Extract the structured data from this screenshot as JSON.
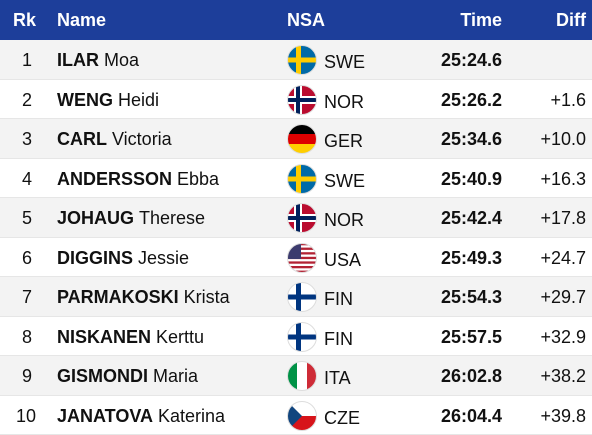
{
  "table": {
    "header": [
      "Rk",
      "Name",
      "NSA",
      "Time",
      "Diff"
    ],
    "rows": [
      {
        "rank": 1,
        "surname": "ILAR",
        "firstname": "Moa",
        "nsa": "SWE",
        "time": "25:24.6",
        "diff": null
      },
      {
        "rank": 2,
        "surname": "WENG",
        "firstname": "Heidi",
        "nsa": "NOR",
        "time": "25:26.2",
        "diff": "+1.6"
      },
      {
        "rank": 3,
        "surname": "CARL",
        "firstname": "Victoria",
        "nsa": "GER",
        "time": "25:34.6",
        "diff": "+10.0"
      },
      {
        "rank": 4,
        "surname": "ANDERSSON",
        "firstname": "Ebba",
        "nsa": "SWE",
        "time": "25:40.9",
        "diff": "+16.3"
      },
      {
        "rank": 5,
        "surname": "JOHAUG",
        "firstname": "Therese",
        "nsa": "NOR",
        "time": "25:42.4",
        "diff": "+17.8"
      },
      {
        "rank": 6,
        "surname": "DIGGINS",
        "firstname": "Jessie",
        "nsa": "USA",
        "time": "25:49.3",
        "diff": "+24.7"
      },
      {
        "rank": 7,
        "surname": "PARMAKOSKI",
        "firstname": "Krista",
        "nsa": "FIN",
        "time": "25:54.3",
        "diff": "+29.7"
      },
      {
        "rank": 8,
        "surname": "NISKANEN",
        "firstname": "Kerttu",
        "nsa": "FIN",
        "time": "25:57.5",
        "diff": "+32.9"
      },
      {
        "rank": 9,
        "surname": "GISMONDI",
        "firstname": "Maria",
        "nsa": "ITA",
        "time": "26:02.8",
        "diff": "+38.2"
      },
      {
        "rank": 10,
        "surname": "JANATOVA",
        "firstname": "Katerina",
        "nsa": "CZE",
        "time": "26:04.4",
        "diff": "+39.8"
      }
    ]
  }
}
